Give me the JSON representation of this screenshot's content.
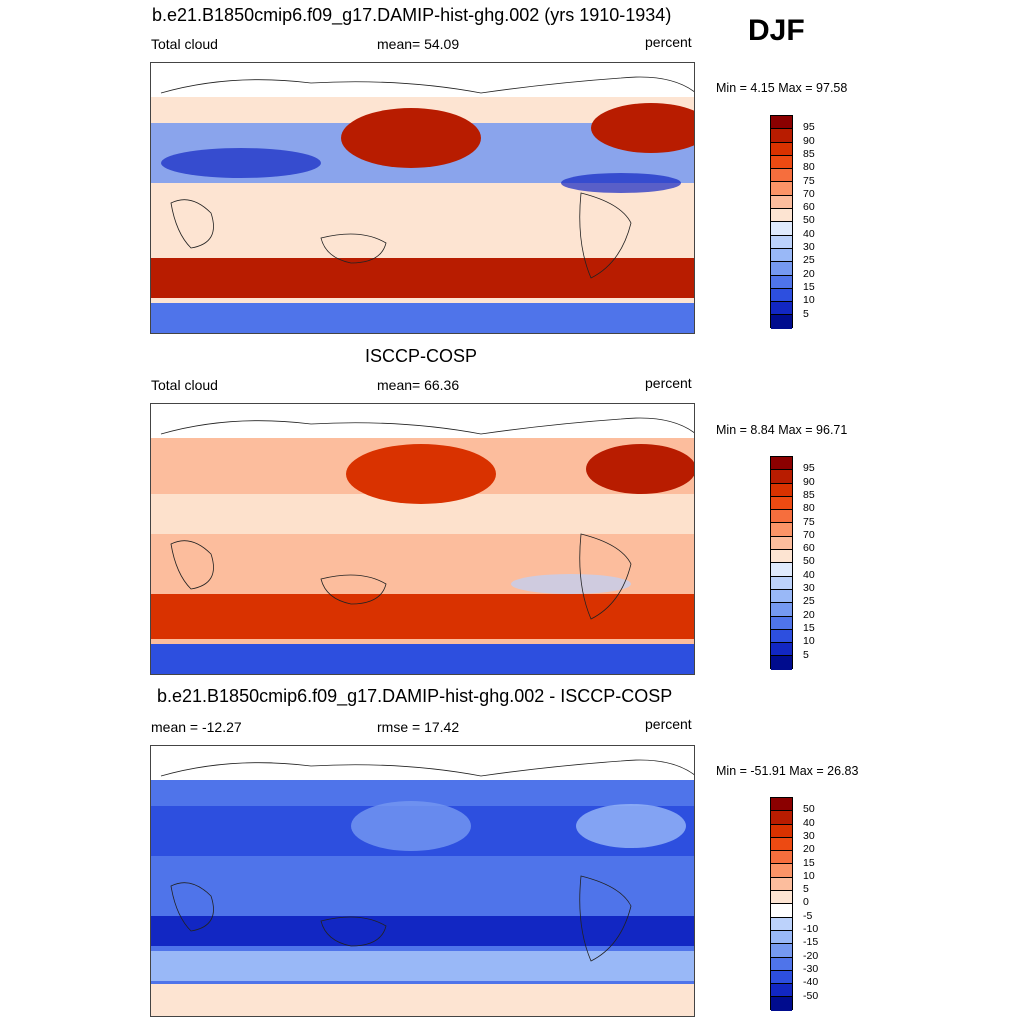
{
  "season": "DJF",
  "panels": [
    {
      "title": "b.e21.B1850cmip6.f09_g17.DAMIP-hist-ghg.002 (yrs 1910-1934)",
      "left": "Total cloud",
      "center": "mean=  54.09",
      "right": "percent",
      "minmax": "Min =   4.15 Max =  97.58",
      "levels": [
        "95",
        "90",
        "85",
        "80",
        "75",
        "70",
        "60",
        "50",
        "40",
        "30",
        "25",
        "20",
        "15",
        "10",
        "5"
      ],
      "colors": [
        "#8b0000",
        "#b81c00",
        "#d93200",
        "#ed4a12",
        "#f66e3d",
        "#fb9467",
        "#fcbd9d",
        "#fde4d2",
        "#dfeafd",
        "#bcd2fb",
        "#99b8f7",
        "#7599f1",
        "#4f74ea",
        "#2d4fdf",
        "#1227c3",
        "#000c8e"
      ]
    },
    {
      "title": "ISCCP-COSP",
      "left": "Total cloud",
      "center": "mean=  66.36",
      "right": "percent",
      "minmax": "Min =   8.84 Max =  96.71",
      "levels": [
        "95",
        "90",
        "85",
        "80",
        "75",
        "70",
        "60",
        "50",
        "40",
        "30",
        "25",
        "20",
        "15",
        "10",
        "5"
      ],
      "colors": [
        "#8b0000",
        "#b81c00",
        "#d93200",
        "#ed4a12",
        "#f66e3d",
        "#fb9467",
        "#fcbd9d",
        "#fde4d2",
        "#dfeafd",
        "#bcd2fb",
        "#99b8f7",
        "#7599f1",
        "#4f74ea",
        "#2d4fdf",
        "#1227c3",
        "#000c8e"
      ]
    },
    {
      "title": "b.e21.B1850cmip6.f09_g17.DAMIP-hist-ghg.002 - ISCCP-COSP",
      "left": "mean = -12.27",
      "center": "rmse =  17.42",
      "right": "percent",
      "minmax": "Min = -51.91 Max =  26.83",
      "levels": [
        "50",
        "40",
        "30",
        "20",
        "15",
        "10",
        "5",
        "0",
        "-5",
        "-10",
        "-15",
        "-20",
        "-30",
        "-40",
        "-50"
      ],
      "colors": [
        "#8b0000",
        "#b81c00",
        "#d93200",
        "#ed4a12",
        "#f66e3d",
        "#fb9467",
        "#fcbd9d",
        "#fde4d2",
        "#ffffff",
        "#bcd2fb",
        "#99b8f7",
        "#7599f1",
        "#4f74ea",
        "#2d4fdf",
        "#1227c3",
        "#000c8e"
      ]
    }
  ],
  "field_colors": {
    "p1": {
      "base": "#fde4d2",
      "ocean_s": "#b81c00",
      "south_pole": "#4f74ea",
      "tropics": "#7599f1",
      "npac": "#b81c00",
      "natl": "#b81c00",
      "bands": "#1227c3"
    },
    "p2": {
      "base": "#fcbd9d",
      "ocean_s": "#d93200",
      "south_pole": "#2d4fdf",
      "tropics": "#fde4d2",
      "npac": "#d93200",
      "natl": "#b81c00",
      "bands": "#bcd2fb"
    },
    "p3": {
      "base": "#4f74ea",
      "ocean_s": "#99b8f7",
      "south_pole": "#fde4d2",
      "tropics": "#2d4fdf",
      "npac": "#7599f1",
      "natl": "#99b8f7",
      "bands": "#1227c3"
    }
  }
}
